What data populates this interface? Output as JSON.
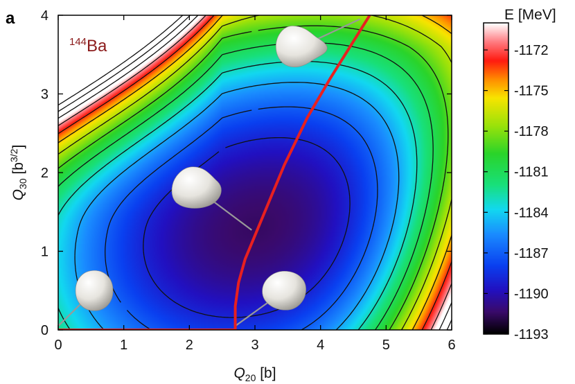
{
  "panel_label": "a",
  "nucleus": {
    "mass_number": "144",
    "element": "Ba",
    "color": "#8b1a1a"
  },
  "chart_data": {
    "type": "heatmap",
    "subtype": "potential-energy-surface",
    "xlabel": {
      "symbol": "Q",
      "subscript": "20",
      "unit": " [b]"
    },
    "ylabel": {
      "symbol": "Q",
      "subscript": "30",
      "unit_open": " [b",
      "unit_power": "3/2",
      "unit_close": "]"
    },
    "xlim": [
      0,
      6
    ],
    "ylim": [
      0,
      4
    ],
    "x_ticks": [
      "0",
      "1",
      "2",
      "3",
      "4",
      "5",
      "6"
    ],
    "y_ticks": [
      "0",
      "1",
      "2",
      "3",
      "4"
    ],
    "colorbar": {
      "title": "E [MeV]",
      "range": [
        -1193,
        -1170
      ],
      "ticks": [
        "-1172",
        "-1175",
        "-1178",
        "-1181",
        "-1184",
        "-1187",
        "-1190",
        "-1193"
      ],
      "tick_values": [
        -1172,
        -1175,
        -1178,
        -1181,
        -1184,
        -1187,
        -1190,
        -1193
      ],
      "colormap": [
        {
          "v": 0.0,
          "c": "#000000"
        },
        {
          "v": 0.07,
          "c": "#3a0a6a"
        },
        {
          "v": 0.14,
          "c": "#2210c0"
        },
        {
          "v": 0.22,
          "c": "#0a40f0"
        },
        {
          "v": 0.32,
          "c": "#1a8cff"
        },
        {
          "v": 0.4,
          "c": "#12d8f0"
        },
        {
          "v": 0.48,
          "c": "#18e07a"
        },
        {
          "v": 0.58,
          "c": "#2ad42a"
        },
        {
          "v": 0.67,
          "c": "#9ae20a"
        },
        {
          "v": 0.76,
          "c": "#f8e400"
        },
        {
          "v": 0.82,
          "c": "#ff8c00"
        },
        {
          "v": 0.88,
          "c": "#ff1a10"
        },
        {
          "v": 0.94,
          "c": "#ff7a80"
        },
        {
          "v": 1.0,
          "c": "#ffffff"
        }
      ]
    },
    "surface_model": {
      "minimum": [
        3.0,
        1.3
      ],
      "min_energy": -1191.5,
      "contour_step": 2
    },
    "fission_path": {
      "color": "#e82020",
      "points": [
        [
          0,
          0
        ],
        [
          2.7,
          0
        ],
        [
          2.7,
          0.3
        ],
        [
          2.75,
          0.6
        ],
        [
          2.85,
          0.9
        ],
        [
          3.0,
          1.2
        ],
        [
          3.2,
          1.6
        ],
        [
          3.45,
          2.1
        ],
        [
          3.8,
          2.7
        ],
        [
          4.15,
          3.2
        ],
        [
          4.45,
          3.6
        ],
        [
          4.75,
          4.0
        ]
      ]
    },
    "shapes": [
      {
        "name": "sphere",
        "center": [
          0.55,
          0.5
        ],
        "target": [
          0.0,
          0.05
        ]
      },
      {
        "name": "octupole-minimum",
        "center": [
          2.1,
          1.8
        ],
        "target": [
          2.95,
          1.27
        ]
      },
      {
        "name": "quadrupole-deformed",
        "center": [
          3.45,
          0.5
        ],
        "target": [
          2.7,
          0.05
        ]
      },
      {
        "name": "pear-elongated",
        "center": [
          3.7,
          3.6
        ],
        "target": [
          4.6,
          3.95
        ]
      }
    ]
  }
}
